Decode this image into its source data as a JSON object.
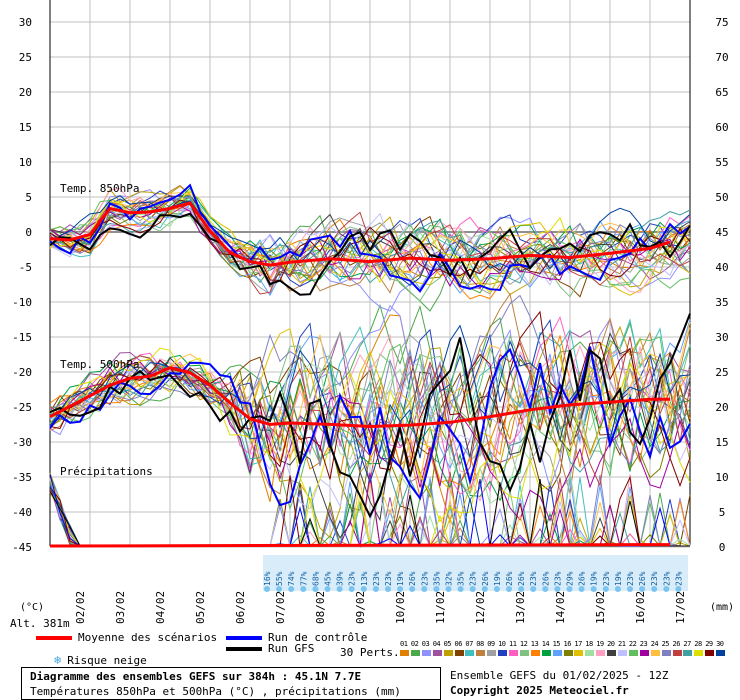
{
  "chart_data": {
    "type": "line",
    "title": "Diagramme des ensembles GEFS sur 384h : 45.1N 7.7E",
    "subtitle": "Températures 850hPa et 500hPa (°C) , précipitations (mm)",
    "ensemble_info": "Ensemble GEFS du 01/02/2025 - 12Z",
    "copyright": "Copyright 2025 Meteociel.fr",
    "left_axis_unit": "(°C)",
    "right_axis_unit": "(mm)",
    "altitude": "Alt. 381m",
    "left_ticks": [
      "30",
      "25",
      "20",
      "15",
      "10",
      "5",
      "0",
      "-5",
      "-10",
      "-15",
      "-20",
      "-25",
      "-30",
      "-35",
      "-40",
      "-45"
    ],
    "right_ticks": [
      "75",
      "70",
      "65",
      "60",
      "55",
      "50",
      "45",
      "40",
      "35",
      "30",
      "25",
      "20",
      "15",
      "10",
      "5",
      "0"
    ],
    "x_ticks": [
      "02/02",
      "03/02",
      "04/02",
      "05/02",
      "06/02",
      "07/02",
      "08/02",
      "09/02",
      "10/02",
      "11/02",
      "12/02",
      "13/02",
      "14/02",
      "15/02",
      "16/02",
      "17/02"
    ],
    "ylim_temp": [
      -45,
      30
    ],
    "ylim_precip": [
      0,
      75
    ],
    "panel_labels": {
      "t850": "Temp. 850hPa",
      "t500": "Temp. 500hPa",
      "precip": "Précipitations"
    },
    "snow_risk": [
      "16%",
      "55%",
      "74%",
      "77%",
      "68%",
      "45%",
      "39%",
      "23%",
      "13%",
      "23%",
      "23%",
      "19%",
      "26%",
      "23%",
      "35%",
      "32%",
      "35%",
      "23%",
      "26%",
      "19%",
      "26%",
      "26%",
      "23%",
      "26%",
      "23%",
      "29%",
      "26%",
      "19%",
      "23%",
      "19%",
      "23%",
      "26%",
      "23%",
      "23%",
      "23%"
    ],
    "series": [
      {
        "name": "Moyenne des scénarios",
        "color": "#ff0000",
        "t850": [
          [
            0,
            -1
          ],
          [
            0.5,
            -1.2
          ],
          [
            1,
            -0.4
          ],
          [
            1.5,
            3.3
          ],
          [
            2,
            2.7
          ],
          [
            2.5,
            2.8
          ],
          [
            3,
            3.3
          ],
          [
            3.5,
            4.1
          ],
          [
            4,
            0.1
          ],
          [
            4.5,
            -3
          ],
          [
            5,
            -4.3
          ],
          [
            5.5,
            -4.8
          ],
          [
            6,
            -4.4
          ],
          [
            7,
            -3.9
          ],
          [
            8,
            -4.3
          ],
          [
            9,
            -3.8
          ],
          [
            10,
            -4.1
          ],
          [
            11,
            -3.9
          ],
          [
            12,
            -3.4
          ],
          [
            13,
            -3.7
          ],
          [
            14,
            -3.1
          ],
          [
            15,
            -2.4
          ],
          [
            15.5,
            -1.5
          ]
        ],
        "t500": [
          [
            0,
            -26.5
          ],
          [
            0.5,
            -25
          ],
          [
            1,
            -23.5
          ],
          [
            1.5,
            -22
          ],
          [
            2,
            -21
          ],
          [
            2.5,
            -20.7
          ],
          [
            3,
            -19.5
          ],
          [
            3.5,
            -20.2
          ],
          [
            4,
            -22
          ],
          [
            4.5,
            -24.5
          ],
          [
            5,
            -26.8
          ],
          [
            5.5,
            -27.6
          ],
          [
            6,
            -27.4
          ],
          [
            7,
            -27.6
          ],
          [
            8,
            -27.9
          ],
          [
            9,
            -27.7
          ],
          [
            10,
            -27.3
          ],
          [
            11,
            -26.5
          ],
          [
            12,
            -25.5
          ],
          [
            13,
            -24.8
          ],
          [
            14,
            -24.4
          ],
          [
            15,
            -24
          ],
          [
            15.5,
            -24
          ]
        ],
        "precip": [
          [
            0,
            0
          ],
          [
            15.5,
            0.2
          ]
        ]
      },
      {
        "name": "Run de contrôle",
        "color": "#0000ff"
      },
      {
        "name": "Run GFS",
        "color": "#000000"
      }
    ],
    "perturbations_label": "30 Perts.",
    "perturbations": [
      "01",
      "02",
      "03",
      "04",
      "05",
      "06",
      "07",
      "08",
      "09",
      "10",
      "11",
      "12",
      "13",
      "14",
      "15",
      "16",
      "17",
      "18",
      "19",
      "20",
      "21",
      "22",
      "23",
      "24",
      "25",
      "26",
      "27",
      "28",
      "29",
      "30"
    ],
    "perturbation_colors": [
      "#e08000",
      "#4ca84c",
      "#9090ff",
      "#a050a0",
      "#c0a000",
      "#804000",
      "#40c0c0",
      "#c08040",
      "#a0a0a0",
      "#2040c0",
      "#ff60c0",
      "#80c080",
      "#ff8000",
      "#00a040",
      "#60a0ff",
      "#808000",
      "#e0c000",
      "#a0e0a0",
      "#ffa0c0",
      "#404040",
      "#c0c0ff",
      "#60c060",
      "#a000a0",
      "#ffc040",
      "#8080c0",
      "#c04040",
      "#40a0a0",
      "#e0e000",
      "#800000",
      "#0040a0"
    ],
    "legend": {
      "mean": "Moyenne des scénarios",
      "control": "Run de contrôle",
      "gfs": "Run GFS",
      "snow": "Risque neige"
    }
  }
}
